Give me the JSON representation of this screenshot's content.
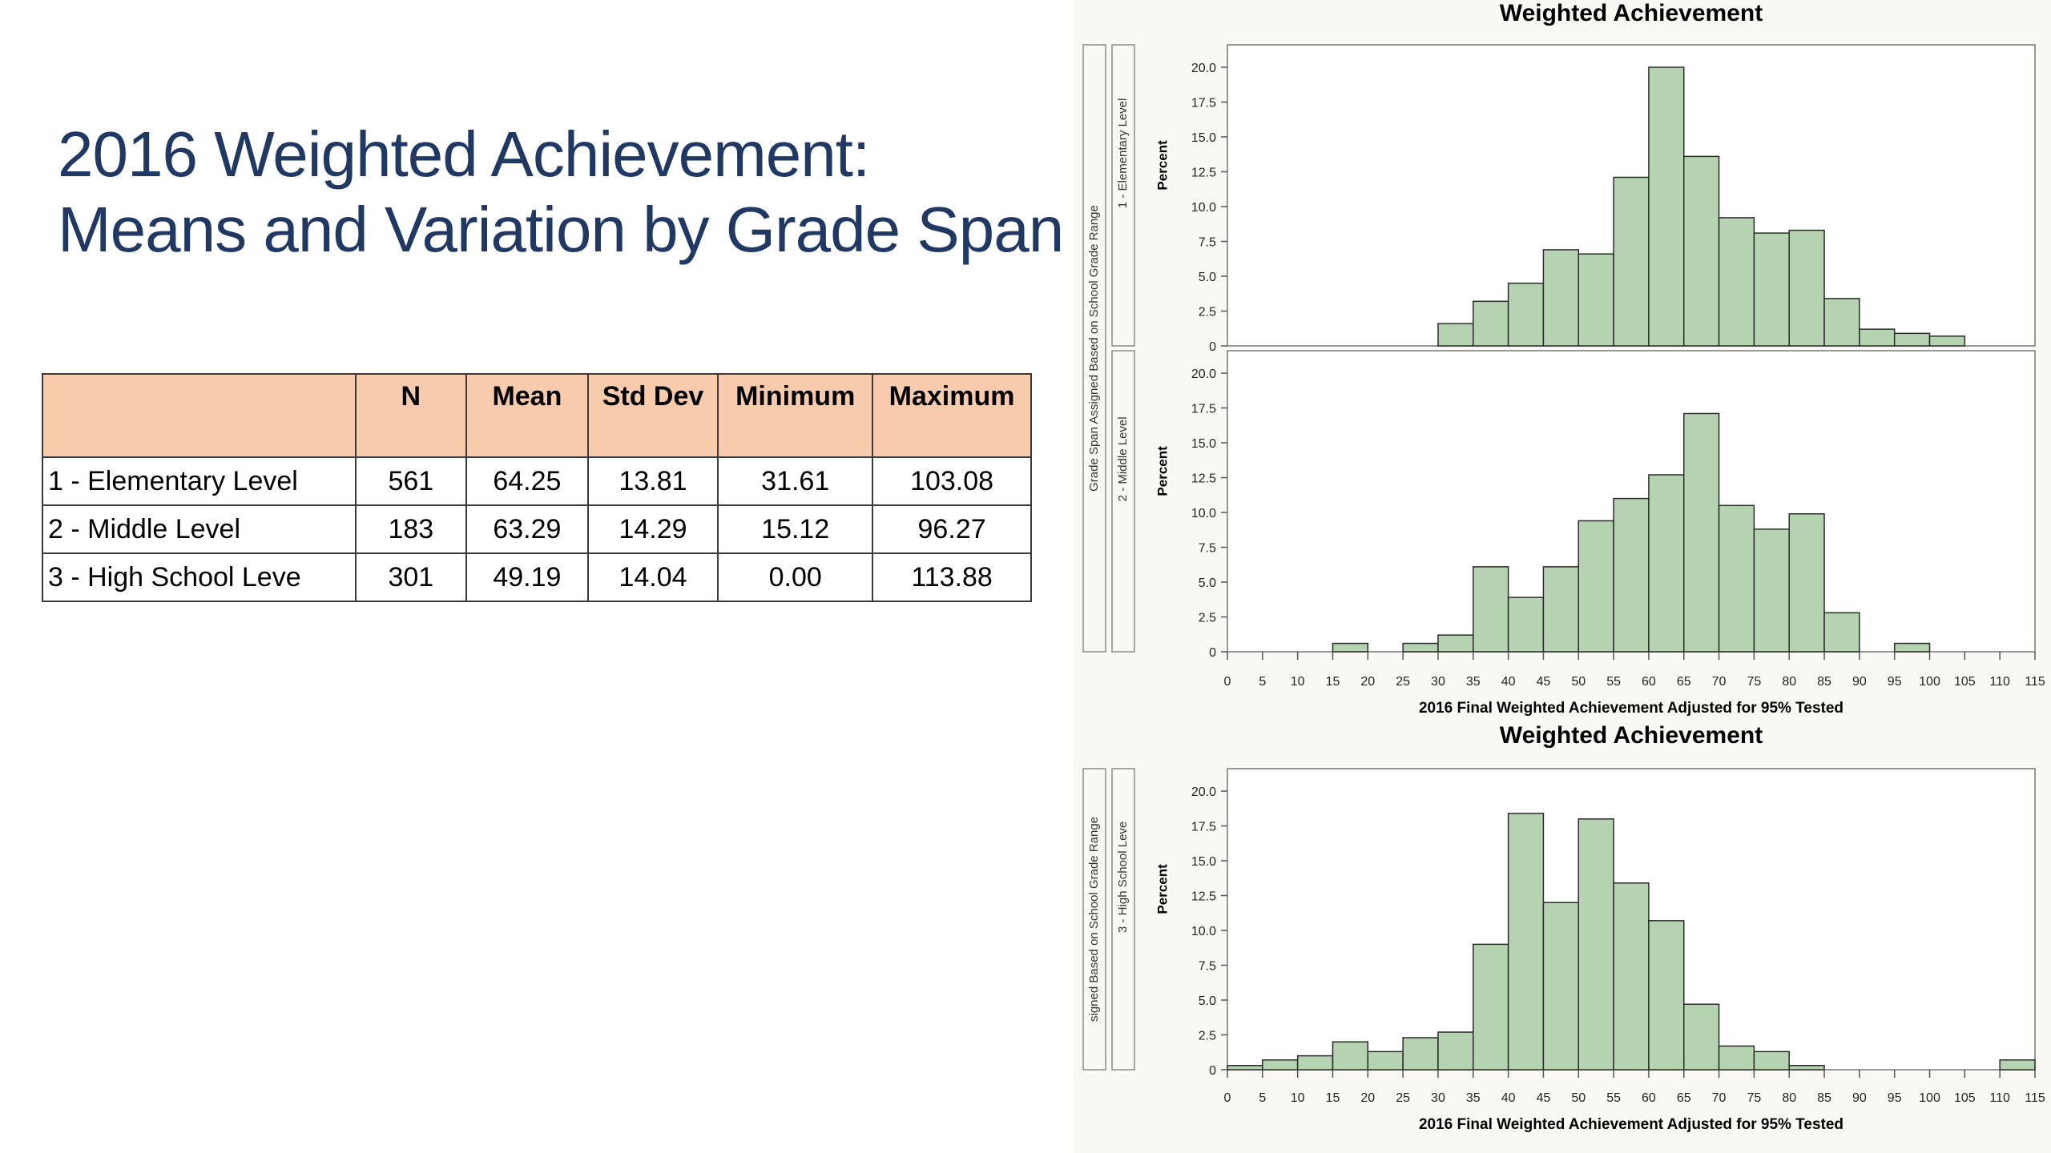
{
  "slide": {
    "title_line1": "2016 Weighted Achievement:",
    "title_line2": "Means and Variation by Grade Span"
  },
  "table": {
    "headers": [
      "",
      "N",
      "Mean",
      "Std Dev",
      "Minimum",
      "Maximum"
    ],
    "rows": [
      {
        "label": "1 - Elementary Level",
        "n": "561",
        "mean": "64.25",
        "std": "13.81",
        "min": "31.61",
        "max": "103.08"
      },
      {
        "label": "2 - Middle Level",
        "n": "183",
        "mean": "63.29",
        "std": "14.29",
        "min": "15.12",
        "max": "96.27"
      },
      {
        "label": "3 - High School Leve",
        "n": "301",
        "mean": "49.19",
        "std": "14.04",
        "min": "0.00",
        "max": "113.88"
      }
    ]
  },
  "chart_data": [
    {
      "type": "bar",
      "title": "Weighted Achievement",
      "outer_label": "Grade Span Assigned Based on School Grade Range",
      "xlabel": "2016 Final Weighted Achievement Adjusted for 95% Tested",
      "ylabel": "Percent",
      "bin_width": 5,
      "xlim": [
        0,
        115
      ],
      "ylim": [
        0,
        20
      ],
      "x_ticks": [
        "0",
        "5",
        "10",
        "15",
        "20",
        "25",
        "30",
        "35",
        "40",
        "45",
        "50",
        "55",
        "60",
        "65",
        "70",
        "75",
        "80",
        "85",
        "90",
        "95",
        "100",
        "105",
        "110",
        "115"
      ],
      "y_ticks": [
        "0",
        "2.5",
        "5.0",
        "7.5",
        "10.0",
        "12.5",
        "15.0",
        "17.5",
        "20.0"
      ],
      "bar_color": "#b5d3b1",
      "panels": [
        {
          "name": "1 - Elementary Level",
          "bins": [
            {
              "x": 30,
              "percent": 1.6
            },
            {
              "x": 35,
              "percent": 3.2
            },
            {
              "x": 40,
              "percent": 4.5
            },
            {
              "x": 45,
              "percent": 6.9
            },
            {
              "x": 50,
              "percent": 6.6
            },
            {
              "x": 55,
              "percent": 12.1
            },
            {
              "x": 60,
              "percent": 20.0
            },
            {
              "x": 65,
              "percent": 13.6
            },
            {
              "x": 70,
              "percent": 9.2
            },
            {
              "x": 75,
              "percent": 8.1
            },
            {
              "x": 80,
              "percent": 8.3
            },
            {
              "x": 85,
              "percent": 3.4
            },
            {
              "x": 90,
              "percent": 1.2
            },
            {
              "x": 95,
              "percent": 0.9
            },
            {
              "x": 100,
              "percent": 0.7
            }
          ]
        },
        {
          "name": "2 - Middle Level",
          "bins": [
            {
              "x": 15,
              "percent": 0.6
            },
            {
              "x": 25,
              "percent": 0.6
            },
            {
              "x": 30,
              "percent": 1.2
            },
            {
              "x": 35,
              "percent": 6.1
            },
            {
              "x": 40,
              "percent": 3.9
            },
            {
              "x": 45,
              "percent": 6.1
            },
            {
              "x": 50,
              "percent": 9.4
            },
            {
              "x": 55,
              "percent": 11.0
            },
            {
              "x": 60,
              "percent": 12.7
            },
            {
              "x": 65,
              "percent": 17.1
            },
            {
              "x": 70,
              "percent": 10.5
            },
            {
              "x": 75,
              "percent": 8.8
            },
            {
              "x": 80,
              "percent": 9.9
            },
            {
              "x": 85,
              "percent": 2.8
            },
            {
              "x": 95,
              "percent": 0.6
            }
          ]
        }
      ]
    },
    {
      "type": "bar",
      "title": "Weighted Achievement",
      "outer_label": "signed Based on School Grade Range",
      "xlabel": "2016 Final Weighted Achievement Adjusted for 95% Tested",
      "ylabel": "Percent",
      "bin_width": 5,
      "xlim": [
        0,
        115
      ],
      "ylim": [
        0,
        20
      ],
      "x_ticks": [
        "0",
        "5",
        "10",
        "15",
        "20",
        "25",
        "30",
        "35",
        "40",
        "45",
        "50",
        "55",
        "60",
        "65",
        "70",
        "75",
        "80",
        "85",
        "90",
        "95",
        "100",
        "105",
        "110",
        "115"
      ],
      "y_ticks": [
        "0",
        "2.5",
        "5.0",
        "7.5",
        "10.0",
        "12.5",
        "15.0",
        "17.5",
        "20.0"
      ],
      "bar_color": "#b5d3b1",
      "panels": [
        {
          "name": "3 - High School Leve",
          "bins": [
            {
              "x": 0,
              "percent": 0.3
            },
            {
              "x": 5,
              "percent": 0.7
            },
            {
              "x": 10,
              "percent": 1.0
            },
            {
              "x": 15,
              "percent": 2.0
            },
            {
              "x": 20,
              "percent": 1.3
            },
            {
              "x": 25,
              "percent": 2.3
            },
            {
              "x": 30,
              "percent": 2.7
            },
            {
              "x": 35,
              "percent": 9.0
            },
            {
              "x": 40,
              "percent": 18.4
            },
            {
              "x": 45,
              "percent": 12.0
            },
            {
              "x": 50,
              "percent": 18.0
            },
            {
              "x": 55,
              "percent": 13.4
            },
            {
              "x": 60,
              "percent": 10.7
            },
            {
              "x": 65,
              "percent": 4.7
            },
            {
              "x": 70,
              "percent": 1.7
            },
            {
              "x": 75,
              "percent": 1.3
            },
            {
              "x": 80,
              "percent": 0.3
            },
            {
              "x": 110,
              "percent": 0.7
            }
          ]
        }
      ]
    }
  ]
}
